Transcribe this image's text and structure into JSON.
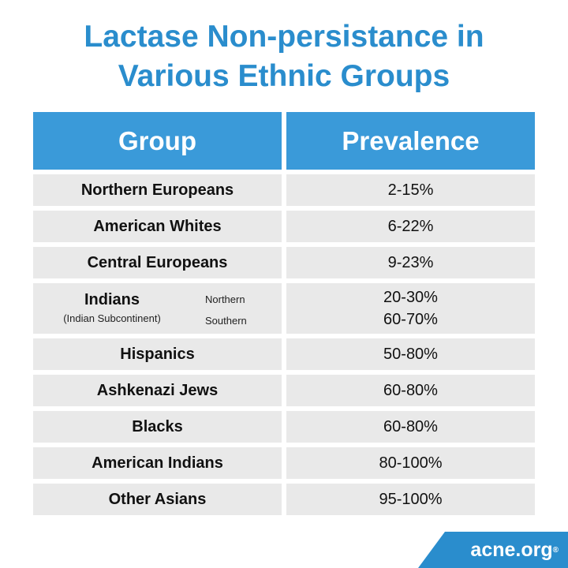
{
  "title": {
    "line1": "Lactase Non-persistance in",
    "line2": "Various Ethnic Groups"
  },
  "table": {
    "headers": {
      "group": "Group",
      "prevalence": "Prevalence"
    },
    "rows": [
      {
        "group": "Northern Europeans",
        "prevalence": "2-15%"
      },
      {
        "group": "American Whites",
        "prevalence": "6-22%"
      },
      {
        "group": "Central Europeans",
        "prevalence": "9-23%"
      },
      {
        "group": "Indians",
        "subtitle": "(Indian Subcontinent)",
        "regions": [
          "Northern",
          "Southern"
        ],
        "prevalences": [
          "20-30%",
          "60-70%"
        ]
      },
      {
        "group": "Hispanics",
        "prevalence": "50-80%"
      },
      {
        "group": "Ashkenazi Jews",
        "prevalence": "60-80%"
      },
      {
        "group": "Blacks",
        "prevalence": "60-80%"
      },
      {
        "group": "American Indians",
        "prevalence": "80-100%"
      },
      {
        "group": "Other Asians",
        "prevalence": "95-100%"
      }
    ]
  },
  "logo": {
    "text": "acne.org",
    "mark": "®"
  },
  "colors": {
    "title": "#2a8dcd",
    "header": "#3a9ad9",
    "cell": "#e9e9e9",
    "logo": "#2a8dcd"
  }
}
